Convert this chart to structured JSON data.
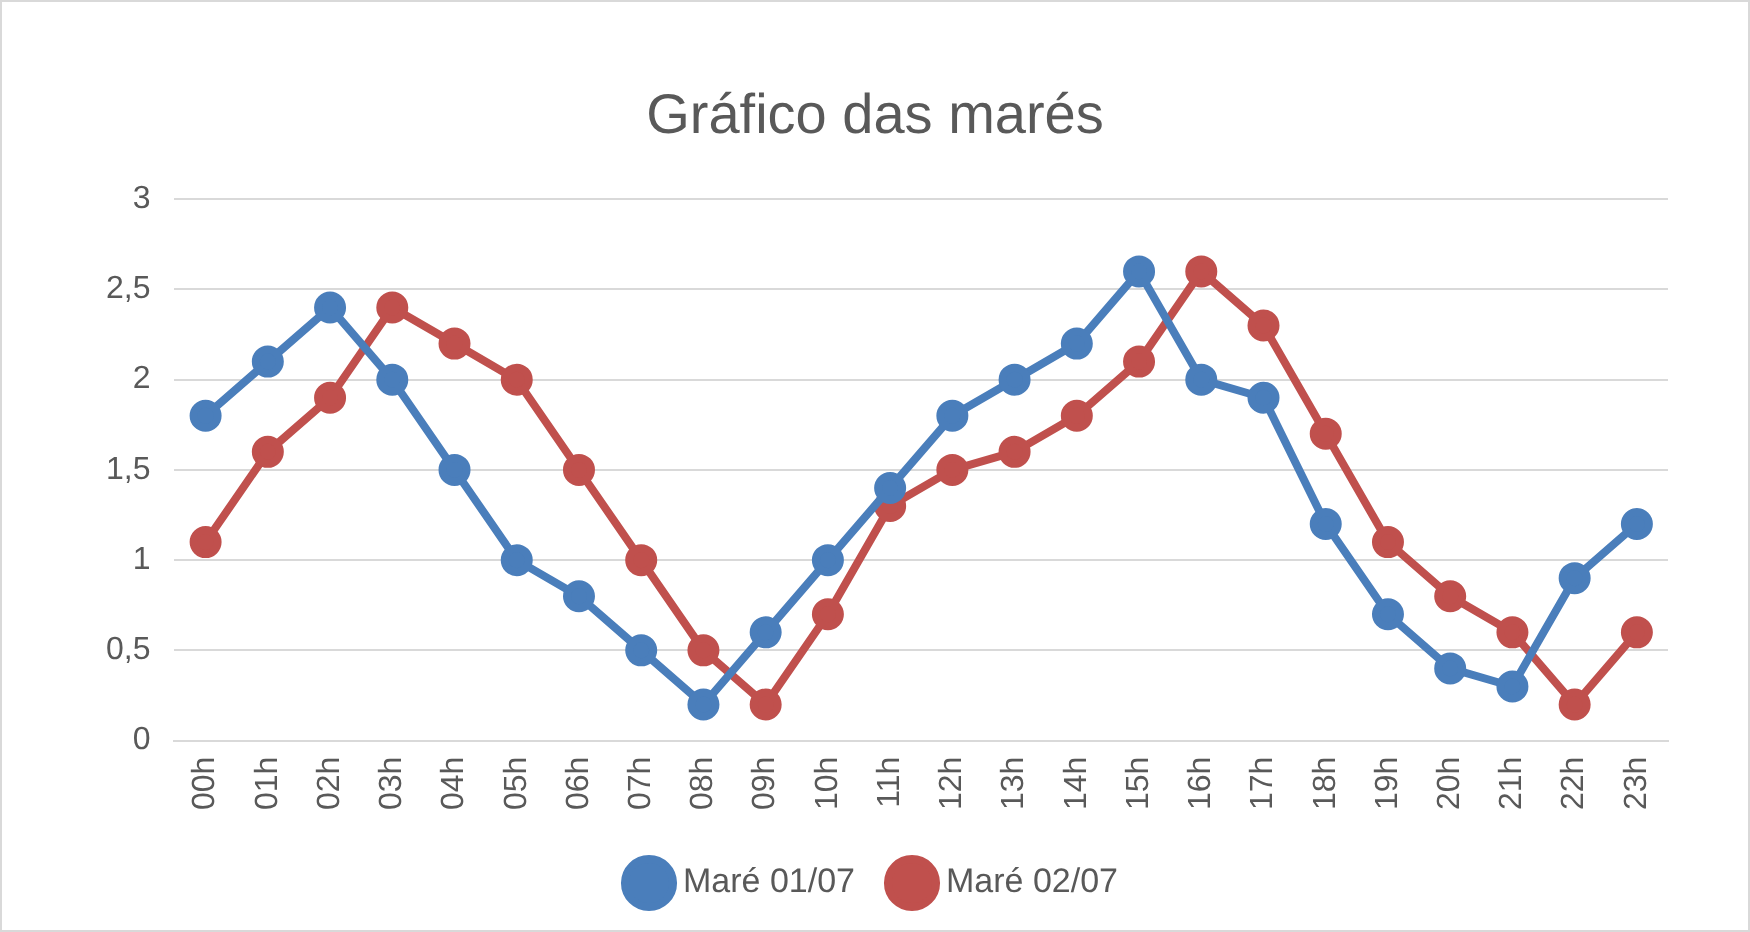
{
  "chart_data": {
    "type": "line",
    "title": "Gráfico das marés",
    "categories": [
      "00h",
      "01h",
      "02h",
      "03h",
      "04h",
      "05h",
      "06h",
      "07h",
      "08h",
      "09h",
      "10h",
      "11h",
      "12h",
      "13h",
      "14h",
      "15h",
      "16h",
      "17h",
      "18h",
      "19h",
      "20h",
      "21h",
      "22h",
      "23h"
    ],
    "series": [
      {
        "name": "Maré 01/07",
        "color": "#4a7ebb",
        "values": [
          1.8,
          2.1,
          2.4,
          2.0,
          1.5,
          1.0,
          0.8,
          0.5,
          0.2,
          0.6,
          1.0,
          1.4,
          1.8,
          2.0,
          2.2,
          2.6,
          2.0,
          1.9,
          1.2,
          0.7,
          0.4,
          0.3,
          0.9,
          1.2
        ]
      },
      {
        "name": "Maré 02/07",
        "color": "#c0504d",
        "values": [
          1.1,
          1.6,
          1.9,
          2.4,
          2.2,
          2.0,
          1.5,
          1.0,
          0.5,
          0.2,
          0.7,
          1.3,
          1.5,
          1.6,
          1.8,
          2.1,
          2.6,
          2.3,
          1.7,
          1.1,
          0.8,
          0.6,
          0.2,
          0.6
        ]
      }
    ],
    "ylim": [
      0,
      3
    ],
    "yticks": [
      0,
      {
        "value": 0.5,
        "label": "0,5"
      },
      1,
      {
        "value": 1.5,
        "label": "1,5"
      },
      2,
      {
        "value": 2.5,
        "label": "2,5"
      },
      3
    ],
    "grid": "y",
    "legend": "bottom",
    "marker": "circle",
    "line_style": "solid"
  }
}
